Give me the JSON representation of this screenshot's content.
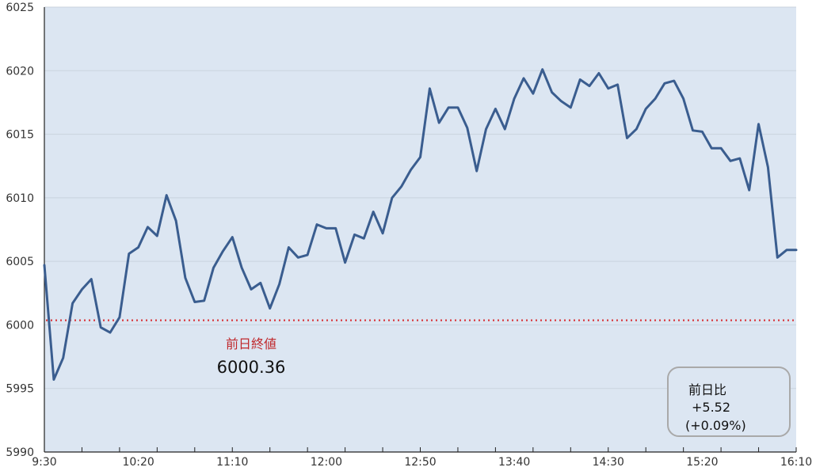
{
  "chart_data": {
    "type": "line",
    "title": "",
    "xlabel": "",
    "ylabel": "",
    "ylim": [
      5990,
      6025
    ],
    "y_ticks": [
      5990,
      5995,
      6000,
      6005,
      6010,
      6015,
      6020,
      6025
    ],
    "x_range": [
      0,
      400
    ],
    "x_ticks": [
      {
        "t": 0,
        "label": "9:30"
      },
      {
        "t": 50,
        "label": "10:20"
      },
      {
        "t": 100,
        "label": "11:10"
      },
      {
        "t": 150,
        "label": "12:00"
      },
      {
        "t": 200,
        "label": "12:50"
      },
      {
        "t": 250,
        "label": "13:40"
      },
      {
        "t": 300,
        "label": "14:30"
      },
      {
        "t": 350,
        "label": "15:20"
      },
      {
        "t": 400,
        "label": "16:10"
      }
    ],
    "grid": "horizontal",
    "series": [
      {
        "t": [
          0,
          5,
          10,
          15,
          20,
          25,
          30,
          35,
          40,
          45,
          50,
          55,
          60,
          65,
          70,
          75,
          80,
          85,
          90,
          95,
          100,
          105,
          110,
          115,
          120,
          125,
          130,
          135,
          140,
          145,
          150,
          155,
          160,
          165,
          170,
          175,
          180,
          185,
          190,
          195,
          200,
          205,
          210,
          215,
          220,
          225,
          230,
          235,
          240,
          245,
          250,
          255,
          260,
          265,
          270,
          275,
          280,
          285,
          290,
          295,
          300,
          305,
          310,
          315,
          320,
          325,
          330,
          335,
          340,
          345,
          350,
          355,
          360,
          365,
          370,
          375,
          380,
          385,
          390,
          395,
          400
        ],
        "values": [
          6004.7,
          5995.7,
          5997.4,
          6001.7,
          6002.8,
          6003.6,
          5999.8,
          5999.4,
          6000.6,
          6005.6,
          6006.1,
          6007.7,
          6007.0,
          6010.2,
          6008.2,
          6003.7,
          6001.8,
          6001.9,
          6004.5,
          6005.8,
          6006.9,
          6004.5,
          6002.8,
          6003.3,
          6001.3,
          6003.2,
          6006.1,
          6005.3,
          6005.5,
          6007.9,
          6007.6,
          6007.6,
          6004.9,
          6007.1,
          6006.8,
          6008.9,
          6007.2,
          6010.0,
          6010.9,
          6012.2,
          6013.2,
          6018.6,
          6015.9,
          6017.1,
          6017.1,
          6015.5,
          6012.1,
          6015.4,
          6017.0,
          6015.4,
          6017.8,
          6019.4,
          6018.2,
          6020.1,
          6018.3,
          6017.6,
          6017.1,
          6019.3,
          6018.8,
          6019.8,
          6018.6,
          6018.9,
          6014.7,
          6015.4,
          6017.0,
          6017.8,
          6019.0,
          6019.2,
          6017.8,
          6015.3,
          6015.2,
          6013.9,
          6013.9,
          6012.9,
          6013.1,
          6010.6,
          6015.8,
          6012.4,
          6005.3,
          6005.9,
          6005.9
        ],
        "color": "#3a5d8f"
      }
    ],
    "reference_line": {
      "value": 6000.36,
      "color": "#d9383c",
      "title": "前日終値",
      "value_label": "6000.36"
    },
    "change_box": {
      "title": "前日比",
      "change": "+5.52",
      "percent": "(+0.09%)"
    },
    "plot_background": "#dce6f2"
  }
}
